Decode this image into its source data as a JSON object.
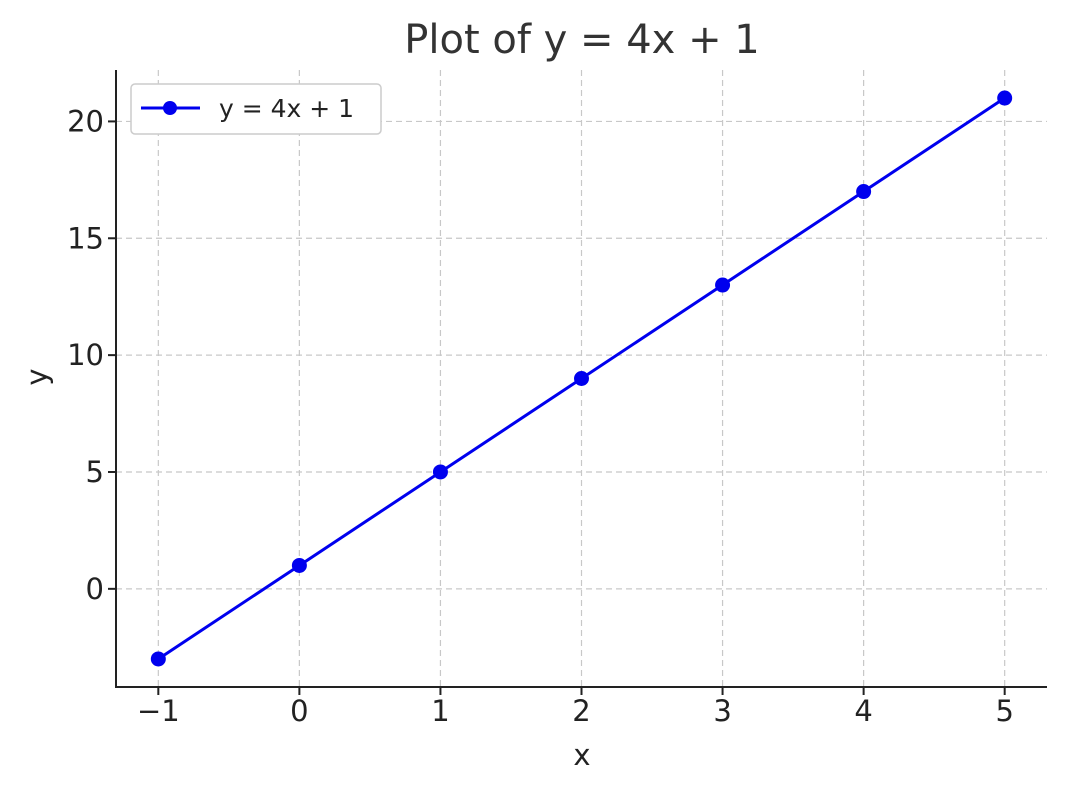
{
  "chart_data": {
    "type": "line",
    "title": "Plot of y = 4x + 1",
    "xlabel": "x",
    "ylabel": "y",
    "xlim": [
      -1.3,
      5.3
    ],
    "ylim": [
      -4.2,
      22.2
    ],
    "xticks": [
      -1,
      0,
      1,
      2,
      3,
      4,
      5
    ],
    "xtick_labels": [
      "−1",
      "0",
      "1",
      "2",
      "3",
      "4",
      "5"
    ],
    "yticks": [
      0,
      5,
      10,
      15,
      20
    ],
    "ytick_labels": [
      "0",
      "5",
      "10",
      "15",
      "20"
    ],
    "grid": true,
    "legend_position": "top-left",
    "series": [
      {
        "name": "y = 4x + 1",
        "color": "#0000ee",
        "marker": "circle",
        "x": [
          -1,
          0,
          1,
          2,
          3,
          4,
          5
        ],
        "y": [
          -3,
          1,
          5,
          9,
          13,
          17,
          21
        ]
      }
    ]
  }
}
